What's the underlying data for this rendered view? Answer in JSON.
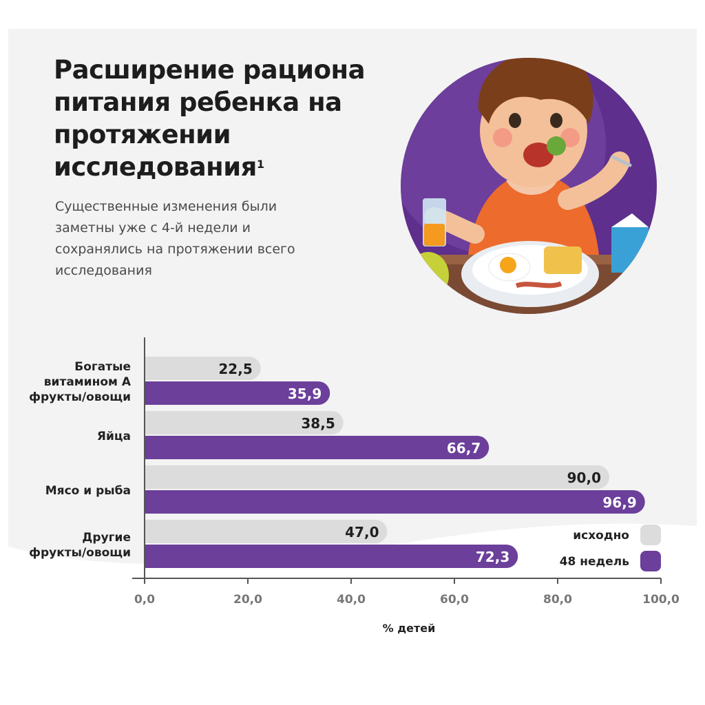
{
  "header": {
    "title": "Расширение рациона питания ребенка на протяжении исследования",
    "title_sup": "1",
    "subtitle": "Существенные изменения были заметны уже с 4-й недели и сохранялись на протяжении всего исследования"
  },
  "illustration": {
    "icon": "child-eating-breakfast-illustration"
  },
  "colors": {
    "baseline": "#dcdcdc",
    "week48": "#6b3f9a",
    "axis": "#555555",
    "tick_label": "#777777"
  },
  "chart_data": {
    "type": "bar",
    "orientation": "horizontal",
    "categories": [
      [
        "Богатые",
        "витамином А",
        "фрукты/овощи"
      ],
      [
        "Яйца"
      ],
      [
        "Мясо и рыба"
      ],
      [
        "Другие",
        "фрукты/овощи"
      ]
    ],
    "series": [
      {
        "name": "исходно",
        "values": [
          22.5,
          38.5,
          90.0,
          47.0
        ],
        "labels": [
          "22,5",
          "38,5",
          "90,0",
          "47,0"
        ]
      },
      {
        "name": "48 недель",
        "values": [
          35.9,
          66.7,
          96.9,
          72.3
        ],
        "labels": [
          "35,9",
          "66,7",
          "96,9",
          "72,3"
        ]
      }
    ],
    "xlim": [
      0,
      100
    ],
    "xticks": [
      0,
      20,
      40,
      60,
      80,
      100
    ],
    "xtick_labels": [
      "0,0",
      "20,0",
      "40,0",
      "60,0",
      "80,0",
      "100,0"
    ],
    "xlabel": "% детей",
    "legend_position": "bottom-right"
  }
}
